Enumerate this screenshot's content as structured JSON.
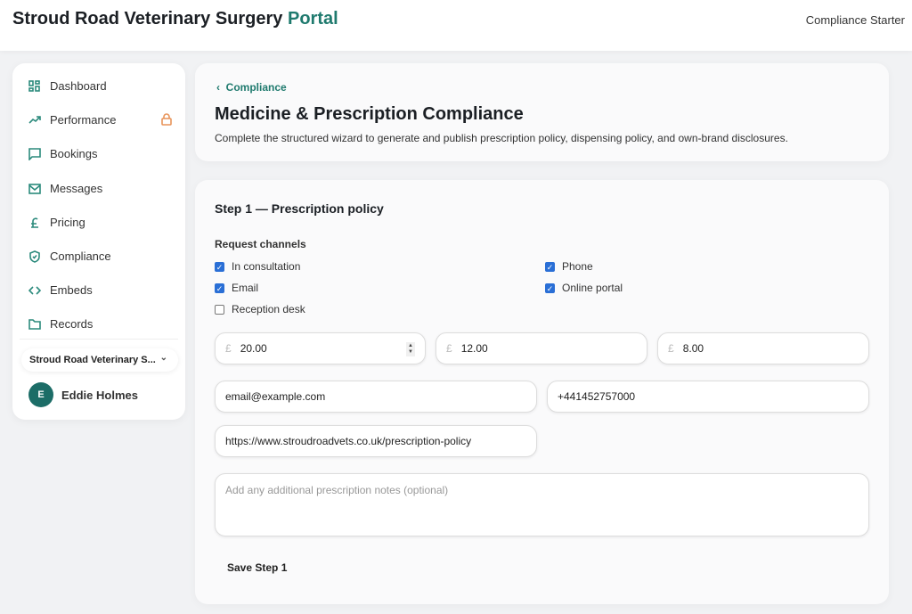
{
  "header": {
    "brand": "Stroud Road Veterinary Surgery",
    "brand_accent": "Portal",
    "plan": "Compliance Starter"
  },
  "sidebar": {
    "items": [
      {
        "label": "Dashboard",
        "icon": "grid-icon"
      },
      {
        "label": "Performance",
        "icon": "trend-icon",
        "locked": true
      },
      {
        "label": "Bookings",
        "icon": "chat-icon"
      },
      {
        "label": "Messages",
        "icon": "mail-icon"
      },
      {
        "label": "Pricing",
        "icon": "pound-icon"
      },
      {
        "label": "Compliance",
        "icon": "shield-icon"
      },
      {
        "label": "Embeds",
        "icon": "code-icon"
      },
      {
        "label": "Records",
        "icon": "folder-icon"
      }
    ],
    "practice": "Stroud Road Veterinary S...",
    "user_initial": "E",
    "user_name": "Eddie Holmes"
  },
  "page": {
    "back": "Compliance",
    "title": "Medicine & Prescription Compliance",
    "subtitle": "Complete the structured wizard to generate and publish prescription policy, dispensing policy, and own-brand disclosures."
  },
  "form": {
    "step": "Step 1 — Prescription policy",
    "channels_label": "Request channels",
    "channels": [
      {
        "label": "In consultation",
        "checked": true
      },
      {
        "label": "Phone",
        "checked": true
      },
      {
        "label": "Email",
        "checked": true
      },
      {
        "label": "Online portal",
        "checked": true
      },
      {
        "label": "Reception desk",
        "checked": false
      }
    ],
    "currency": "£",
    "fee1": "20.00",
    "fee2": "12.00",
    "fee3": "8.00",
    "email": "email@example.com",
    "phone": "+441452757000",
    "url": "https://www.stroudroadvets.co.uk/prescription-policy",
    "notes_placeholder": "Add any additional prescription notes (optional)",
    "save": "Save Step 1"
  },
  "colors": {
    "accent": "#1f7a6e",
    "checkbox": "#2a6fd6",
    "lock": "#e8945a"
  }
}
